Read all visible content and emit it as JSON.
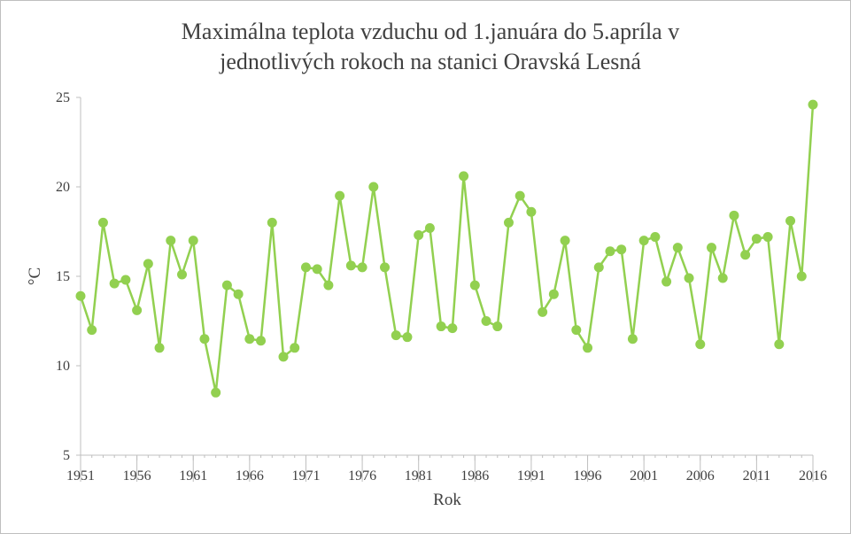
{
  "chart_data": {
    "type": "line",
    "title_lines": [
      "Maximálna teplota vzduchu od 1.januára do 5.apríla v",
      "jednotlivých rokoch na stanici Oravská Lesná"
    ],
    "xlabel": "Rok",
    "ylabel": "°C",
    "ylim": [
      5,
      25
    ],
    "yticks": [
      "5",
      "10",
      "15",
      "20",
      "25"
    ],
    "xlim": [
      1951,
      2016
    ],
    "xticks": [
      "1951",
      "1956",
      "1961",
      "1966",
      "1971",
      "1976",
      "1981",
      "1986",
      "1991",
      "1996",
      "2001",
      "2006",
      "2011",
      "2016"
    ],
    "grid": false,
    "series": [
      {
        "name": "Maximálna teplota",
        "color": "#92d050",
        "x": [
          1951,
          1952,
          1953,
          1954,
          1955,
          1956,
          1957,
          1958,
          1959,
          1960,
          1961,
          1962,
          1963,
          1964,
          1965,
          1966,
          1967,
          1968,
          1969,
          1970,
          1971,
          1972,
          1973,
          1974,
          1975,
          1976,
          1977,
          1978,
          1979,
          1980,
          1981,
          1982,
          1983,
          1984,
          1985,
          1986,
          1987,
          1988,
          1989,
          1990,
          1991,
          1992,
          1993,
          1994,
          1995,
          1996,
          1997,
          1998,
          1999,
          2000,
          2001,
          2002,
          2003,
          2004,
          2005,
          2006,
          2007,
          2008,
          2009,
          2010,
          2011,
          2012,
          2013,
          2014,
          2015,
          2016
        ],
        "values": [
          13.9,
          12.0,
          18.0,
          14.6,
          14.8,
          13.1,
          15.7,
          11.0,
          17.0,
          15.1,
          17.0,
          11.5,
          8.5,
          14.5,
          14.0,
          11.5,
          11.4,
          18.0,
          10.5,
          11.0,
          15.5,
          15.4,
          14.5,
          19.5,
          15.6,
          15.5,
          20.0,
          15.5,
          11.7,
          11.6,
          17.3,
          17.7,
          12.2,
          12.1,
          20.6,
          14.5,
          12.5,
          12.2,
          18.0,
          19.5,
          18.6,
          13.0,
          14.0,
          17.0,
          12.0,
          11.0,
          15.5,
          16.4,
          16.5,
          11.5,
          17.0,
          17.2,
          14.7,
          16.6,
          14.9,
          11.2,
          16.6,
          14.9,
          18.4,
          16.2,
          17.1,
          17.2,
          11.2,
          18.1,
          15.0,
          24.6
        ]
      }
    ]
  }
}
